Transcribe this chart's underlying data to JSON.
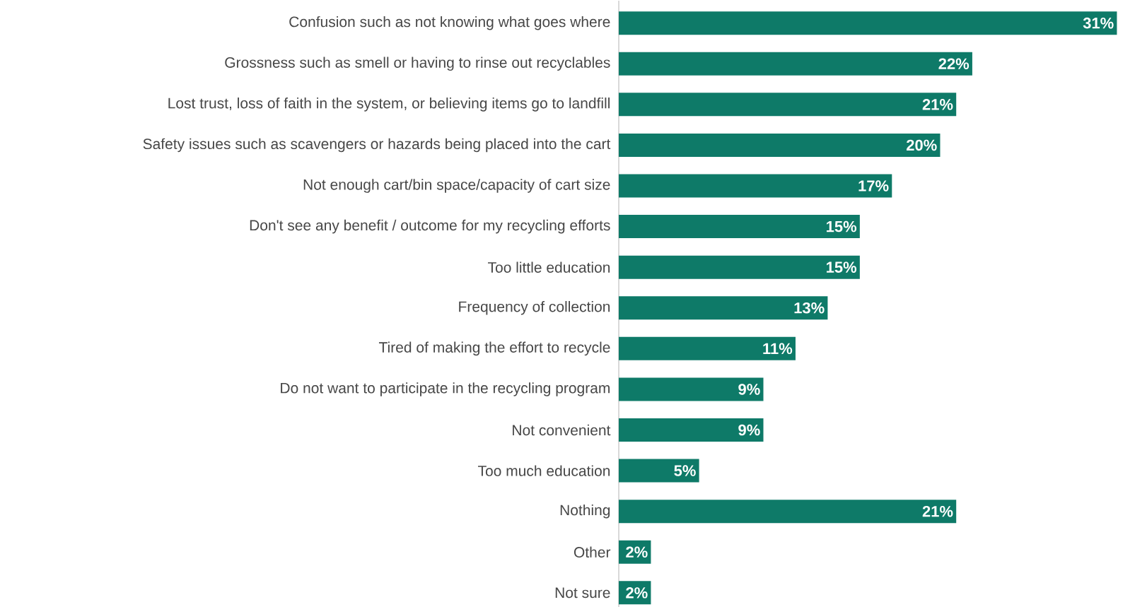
{
  "chart_data": {
    "type": "bar",
    "orientation": "horizontal",
    "categories": [
      "Confusion such as not knowing what goes where",
      "Grossness such as smell or having to rinse out recyclables",
      "Lost trust, loss of faith in the system, or believing items go to landfill",
      "Safety issues such as scavengers or hazards being placed into the cart",
      "Not enough cart/bin space/capacity of cart size",
      "Don't see any benefit / outcome for my recycling efforts",
      "Too little education",
      "Frequency of collection",
      "Tired of making the effort to recycle",
      "Do not want to participate in the recycling program",
      "Not convenient",
      "Too much education",
      "Nothing",
      "Other",
      "Not sure"
    ],
    "values": [
      31,
      22,
      21,
      20,
      17,
      15,
      15,
      13,
      11,
      9,
      9,
      5,
      21,
      2,
      2
    ],
    "value_labels": [
      "31%",
      "22%",
      "21%",
      "20%",
      "17%",
      "15%",
      "15%",
      "13%",
      "11%",
      "9%",
      "9%",
      "5%",
      "21%",
      "2%",
      "2%"
    ],
    "color": "#0e7a68",
    "tick_labels": "y"
  }
}
